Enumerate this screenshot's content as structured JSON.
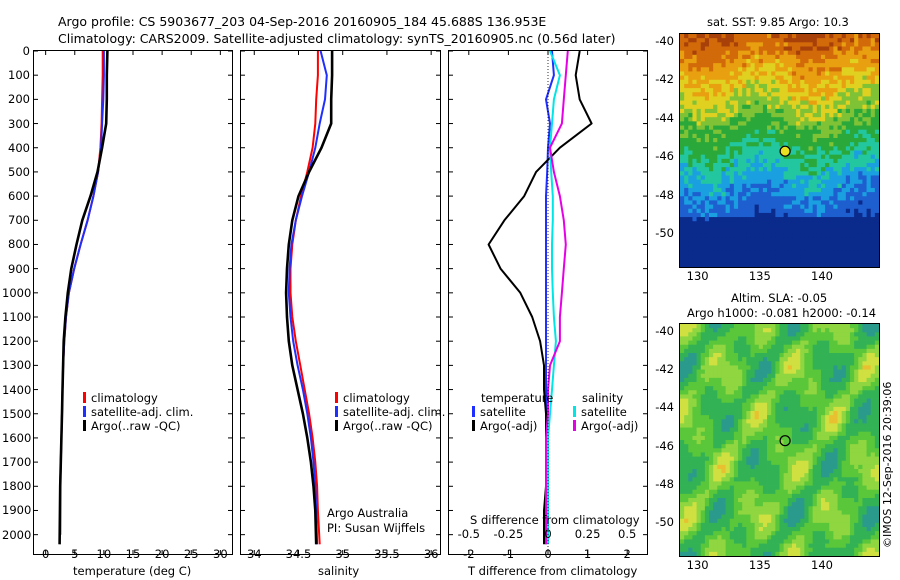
{
  "header": {
    "line1": "Argo profile: CS 5903677_203 04-Sep-2016 20160905_184 45.688S 136.953E",
    "line2": "Climatology: CARS2009. Satellite-adjusted climatology: synTS_20160905.nc (0.56d later)"
  },
  "colors": {
    "climatology": "#ff0000",
    "satellite": "#1f2fff",
    "argo": "#000000",
    "salinity_sat": "#00e5e5",
    "salinity_argo": "#e600e6"
  },
  "depth_ticks": [
    "0",
    "100",
    "200",
    "300",
    "400",
    "500",
    "600",
    "700",
    "800",
    "900",
    "1000",
    "1100",
    "1200",
    "1300",
    "1400",
    "1500",
    "1600",
    "1700",
    "1800",
    "1900",
    "2000"
  ],
  "panels": {
    "temperature": {
      "xlabel": "temperature (deg C)",
      "xticks": [
        "0",
        "5",
        "10",
        "15",
        "20",
        "25",
        "30"
      ],
      "legend": [
        "climatology",
        "satellite-adj. clim.",
        "Argo(..raw -QC)"
      ]
    },
    "salinity": {
      "xlabel": "salinity",
      "xticks": [
        "34",
        "34.5",
        "35",
        "35.5",
        "36"
      ],
      "legend": [
        "climatology",
        "satellite-adj. clim.",
        "Argo(..raw -QC)"
      ],
      "note1": "Argo Australia",
      "note2": "PI: Susan Wijffels"
    },
    "difference": {
      "xlabel": "T difference from climatology",
      "top_label": "S difference from climatology",
      "xticks": [
        "-2",
        "-1",
        "0",
        "1",
        "2"
      ],
      "xticks_top": [
        "-0.5",
        "-0.25",
        "0",
        "0.25",
        "0.5"
      ],
      "legend_t_title": "temperature",
      "legend_s_title": "salinity",
      "legend_t": [
        "satellite",
        "Argo(-adj)"
      ],
      "legend_s": [
        "satellite",
        "Argo(-adj)"
      ]
    }
  },
  "maps": {
    "sst_title": "sat. SST: 9.85 Argo: 10.3",
    "sla_title1": "Altim. SLA: -0.05",
    "sla_title2": "Argo h1000: -0.081 h2000: -0.14",
    "lat_ticks": [
      "-40",
      "-42",
      "-44",
      "-46",
      "-48",
      "-50"
    ],
    "lon_ticks": [
      "130",
      "135",
      "140"
    ],
    "float_lon": 136.953,
    "float_lat": -45.688
  },
  "stamp": "©IMOS 12-Sep-2016 20:39:06",
  "chart_data": [
    {
      "type": "line",
      "title": "",
      "xlabel": "temperature (deg C)",
      "ylabel": "",
      "xlim": [
        -2,
        32
      ],
      "ylim": [
        2080,
        0
      ],
      "series": [
        {
          "name": "climatology",
          "color": "#ff0000",
          "x": [
            9.8,
            9.8,
            9.7,
            9.6,
            9.4,
            9.0,
            8.2,
            7.2,
            6.0,
            4.9,
            4.0,
            3.5,
            3.2,
            3.0,
            2.9,
            2.8,
            2.7,
            2.6,
            2.5,
            2.5
          ],
          "y": [
            0,
            100,
            200,
            300,
            400,
            500,
            600,
            700,
            800,
            900,
            1000,
            1100,
            1200,
            1300,
            1400,
            1500,
            1600,
            1700,
            1800,
            2000
          ]
        },
        {
          "name": "satellite-adj. clim.",
          "color": "#1f2fff",
          "x": [
            10.0,
            10.0,
            9.9,
            9.7,
            9.5,
            9.0,
            8.2,
            7.2,
            6.0,
            4.9,
            4.0,
            3.5,
            3.2,
            3.0,
            2.9,
            2.8,
            2.7,
            2.6,
            2.5,
            2.5
          ],
          "y": [
            0,
            100,
            200,
            300,
            400,
            500,
            600,
            700,
            800,
            900,
            1000,
            1100,
            1200,
            1300,
            1400,
            1500,
            1600,
            1700,
            1800,
            2000
          ]
        },
        {
          "name": "Argo(..raw -QC)",
          "color": "#000000",
          "x": [
            10.6,
            10.5,
            10.5,
            10.4,
            9.7,
            8.9,
            7.7,
            6.3,
            5.3,
            4.4,
            3.8,
            3.4,
            3.1,
            3.0,
            2.9,
            2.8,
            2.7,
            2.6,
            2.5,
            2.4
          ],
          "y": [
            0,
            100,
            200,
            300,
            400,
            500,
            600,
            700,
            800,
            900,
            1000,
            1100,
            1200,
            1300,
            1400,
            1500,
            1600,
            1700,
            1800,
            2040
          ]
        }
      ]
    },
    {
      "type": "line",
      "title": "",
      "xlabel": "salinity",
      "ylabel": "",
      "xlim": [
        33.85,
        36.1
      ],
      "ylim": [
        2080,
        0
      ],
      "series": [
        {
          "name": "climatology",
          "color": "#ff0000",
          "x": [
            34.72,
            34.72,
            34.7,
            34.69,
            34.66,
            34.6,
            34.53,
            34.47,
            34.43,
            34.41,
            34.41,
            34.43,
            34.47,
            34.52,
            34.57,
            34.62,
            34.66,
            34.69,
            34.71,
            34.72,
            34.74
          ],
          "y": [
            0,
            100,
            200,
            300,
            400,
            500,
            600,
            700,
            800,
            900,
            1000,
            1100,
            1200,
            1300,
            1400,
            1500,
            1600,
            1700,
            1800,
            1900,
            2040
          ]
        },
        {
          "name": "satellite-adj. clim.",
          "color": "#1f2fff",
          "x": [
            34.75,
            34.82,
            34.8,
            34.74,
            34.69,
            34.62,
            34.54,
            34.47,
            34.42,
            34.4,
            34.39,
            34.41,
            34.44,
            34.49,
            34.55,
            34.6,
            34.64,
            34.67,
            34.69,
            34.7,
            34.71
          ],
          "y": [
            0,
            100,
            200,
            300,
            400,
            500,
            600,
            700,
            800,
            900,
            1000,
            1100,
            1200,
            1300,
            1400,
            1500,
            1600,
            1700,
            1800,
            1900,
            2040
          ]
        },
        {
          "name": "Argo(..raw -QC)",
          "color": "#000000",
          "x": [
            34.88,
            34.88,
            34.87,
            34.87,
            34.76,
            34.62,
            34.5,
            34.43,
            34.39,
            34.37,
            34.36,
            34.37,
            34.39,
            34.43,
            34.49,
            34.55,
            34.6,
            34.64,
            34.67,
            34.69,
            34.7
          ],
          "y": [
            0,
            100,
            200,
            300,
            400,
            500,
            600,
            700,
            800,
            900,
            1000,
            1100,
            1200,
            1300,
            1400,
            1500,
            1600,
            1700,
            1800,
            1900,
            2040
          ]
        }
      ]
    },
    {
      "type": "line",
      "title": "",
      "xlabel": "T difference from climatology",
      "ylabel": "",
      "xlim": [
        -2.5,
        2.5
      ],
      "ylim": [
        2080,
        0
      ],
      "series": [
        {
          "name": "satellite",
          "color": "#1f2fff",
          "x": [
            0.1,
            0.15,
            -0.05,
            0.05,
            0.0,
            -0.02,
            -0.05,
            -0.05,
            -0.05,
            -0.05,
            -0.05,
            -0.05,
            -0.05,
            -0.05,
            -0.05,
            -0.05,
            -0.05,
            -0.05,
            -0.05,
            -0.05,
            -0.05
          ],
          "y": [
            0,
            100,
            200,
            300,
            400,
            500,
            600,
            700,
            800,
            900,
            1000,
            1100,
            1200,
            1300,
            1400,
            1500,
            1600,
            1700,
            1800,
            1900,
            2040
          ]
        },
        {
          "name": "Argo(-adj)",
          "color": "#000000",
          "x": [
            0.8,
            0.7,
            0.8,
            1.1,
            0.3,
            -0.3,
            -0.6,
            -1.1,
            -1.5,
            -1.2,
            -0.7,
            -0.4,
            -0.2,
            -0.1,
            -0.1,
            -0.05,
            -0.05,
            -0.05,
            -0.05,
            -0.1,
            -0.1
          ],
          "y": [
            0,
            100,
            200,
            300,
            400,
            500,
            600,
            700,
            800,
            900,
            1000,
            1100,
            1200,
            1300,
            1400,
            1500,
            1600,
            1700,
            1800,
            1900,
            2040
          ]
        },
        {
          "name": "satellite",
          "color": "#00e5e5",
          "x": [
            0.05,
            0.3,
            0.15,
            0.1,
            0.05,
            0.08,
            0.12,
            0.12,
            0.1,
            0.1,
            0.12,
            0.15,
            0.2,
            0.15,
            0.1,
            0.05,
            0.0,
            0.0,
            0.0,
            0.0,
            0.0
          ],
          "y": [
            0,
            100,
            200,
            300,
            400,
            500,
            600,
            700,
            800,
            900,
            1000,
            1100,
            1200,
            1300,
            1400,
            1500,
            1600,
            1700,
            1800,
            1900,
            2040
          ]
        },
        {
          "name": "Argo(-adj)",
          "color": "#e600e6",
          "x": [
            0.5,
            0.45,
            0.4,
            0.35,
            0.05,
            0.15,
            0.3,
            0.4,
            0.45,
            0.4,
            0.35,
            0.3,
            0.3,
            0.05,
            0.0,
            0.0,
            -0.05,
            -0.05,
            -0.05,
            -0.05,
            -0.05
          ],
          "y": [
            0,
            100,
            200,
            300,
            400,
            500,
            600,
            700,
            800,
            900,
            1000,
            1100,
            1200,
            1300,
            1400,
            1500,
            1600,
            1700,
            1800,
            1900,
            2040
          ]
        }
      ]
    }
  ]
}
